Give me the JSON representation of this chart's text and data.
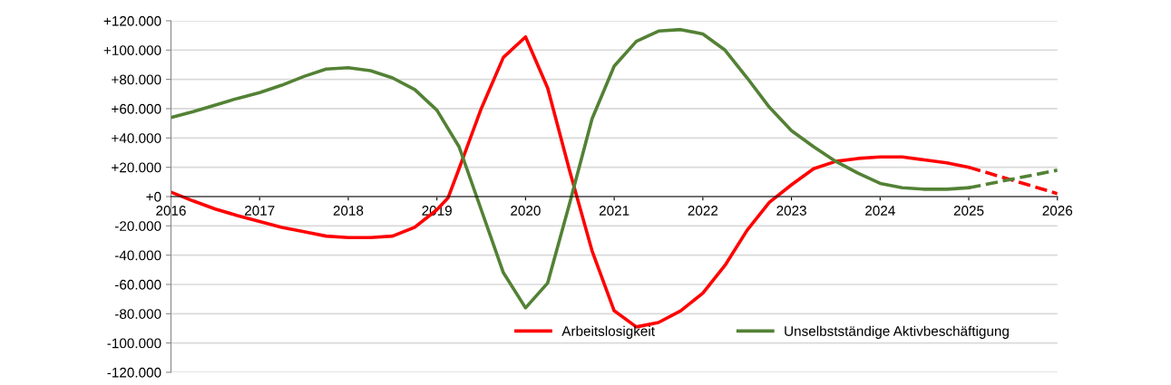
{
  "chart_data": {
    "type": "line",
    "series": [
      {
        "name": "Arbeitslosigkeit",
        "color": "#ff0000",
        "x": [
          2016,
          2016.25,
          2016.5,
          2016.75,
          2017,
          2017.25,
          2017.5,
          2017.75,
          2018,
          2018.25,
          2018.5,
          2018.75,
          2019,
          2019.125,
          2019.25,
          2019.5,
          2019.75,
          2020,
          2020.25,
          2020.5,
          2020.75,
          2021,
          2021.25,
          2021.5,
          2021.75,
          2022,
          2022.25,
          2022.5,
          2022.75,
          2023,
          2023.25,
          2023.5,
          2023.75,
          2024,
          2024.25,
          2024.5,
          2024.75,
          2025
        ],
        "values": [
          3000,
          -3000,
          -8500,
          -13000,
          -17000,
          -21000,
          -24000,
          -27000,
          -28000,
          -28000,
          -27000,
          -21000,
          -9000,
          -1000,
          19000,
          60000,
          95000,
          109000,
          74000,
          17000,
          -37000,
          -78000,
          -89000,
          -86000,
          -78000,
          -66000,
          -47000,
          -23000,
          -4000,
          8000,
          19000,
          24000,
          26000,
          27000,
          27000,
          25000,
          23000,
          20000
        ],
        "line_style": "solid"
      },
      {
        "name": "Unselbstständige Aktivbeschäftigung",
        "color": "#538135",
        "x": [
          2016,
          2016.25,
          2016.5,
          2016.75,
          2017,
          2017.25,
          2017.5,
          2017.75,
          2018,
          2018.25,
          2018.5,
          2018.75,
          2019,
          2019.25,
          2019.5,
          2019.75,
          2020,
          2020.25,
          2020.5,
          2020.75,
          2021,
          2021.25,
          2021.5,
          2021.75,
          2022,
          2022.25,
          2022.5,
          2022.75,
          2023,
          2023.25,
          2023.5,
          2023.75,
          2024,
          2024.25,
          2024.5,
          2024.75,
          2025
        ],
        "values": [
          54000,
          58000,
          62500,
          67000,
          71000,
          76000,
          82000,
          87000,
          88000,
          86000,
          81000,
          73000,
          59000,
          34000,
          -9000,
          -52000,
          -76000,
          -59000,
          -4000,
          53000,
          89000,
          106000,
          113000,
          114000,
          111000,
          100000,
          81000,
          61000,
          45000,
          34000,
          24000,
          16000,
          9000,
          6000,
          5000,
          5000,
          6000
        ],
        "line_style": "solid"
      },
      {
        "color": "#ff0000",
        "x": [
          2025,
          2026
        ],
        "values": [
          20000,
          2000
        ],
        "line_style": "dashed"
      },
      {
        "color": "#538135",
        "x": [
          2025,
          2026
        ],
        "values": [
          6000,
          18000
        ],
        "line_style": "dashed"
      }
    ],
    "xlim": [
      2016,
      2026
    ],
    "xticks": [
      2016,
      2017,
      2018,
      2019,
      2020,
      2021,
      2022,
      2023,
      2024,
      2025,
      2026
    ],
    "ylim": [
      -120000,
      120000
    ],
    "yticks": [
      {
        "value": 120000,
        "label": "+120.000"
      },
      {
        "value": 100000,
        "label": "+100.000"
      },
      {
        "value": 80000,
        "label": "+80.000"
      },
      {
        "value": 60000,
        "label": "+60.000"
      },
      {
        "value": 40000,
        "label": "+40.000"
      },
      {
        "value": 20000,
        "label": "+20.000"
      },
      {
        "value": 0,
        "label": "+0"
      },
      {
        "value": -20000,
        "label": "-20.000"
      },
      {
        "value": -40000,
        "label": "-40.000"
      },
      {
        "value": -60000,
        "label": "-60.000"
      },
      {
        "value": -80000,
        "label": "-80.000"
      },
      {
        "value": -100000,
        "label": "-100.000"
      },
      {
        "value": -120000,
        "label": "-120.000"
      }
    ],
    "grid": "y",
    "legend": "bottom right",
    "marker": "none"
  }
}
